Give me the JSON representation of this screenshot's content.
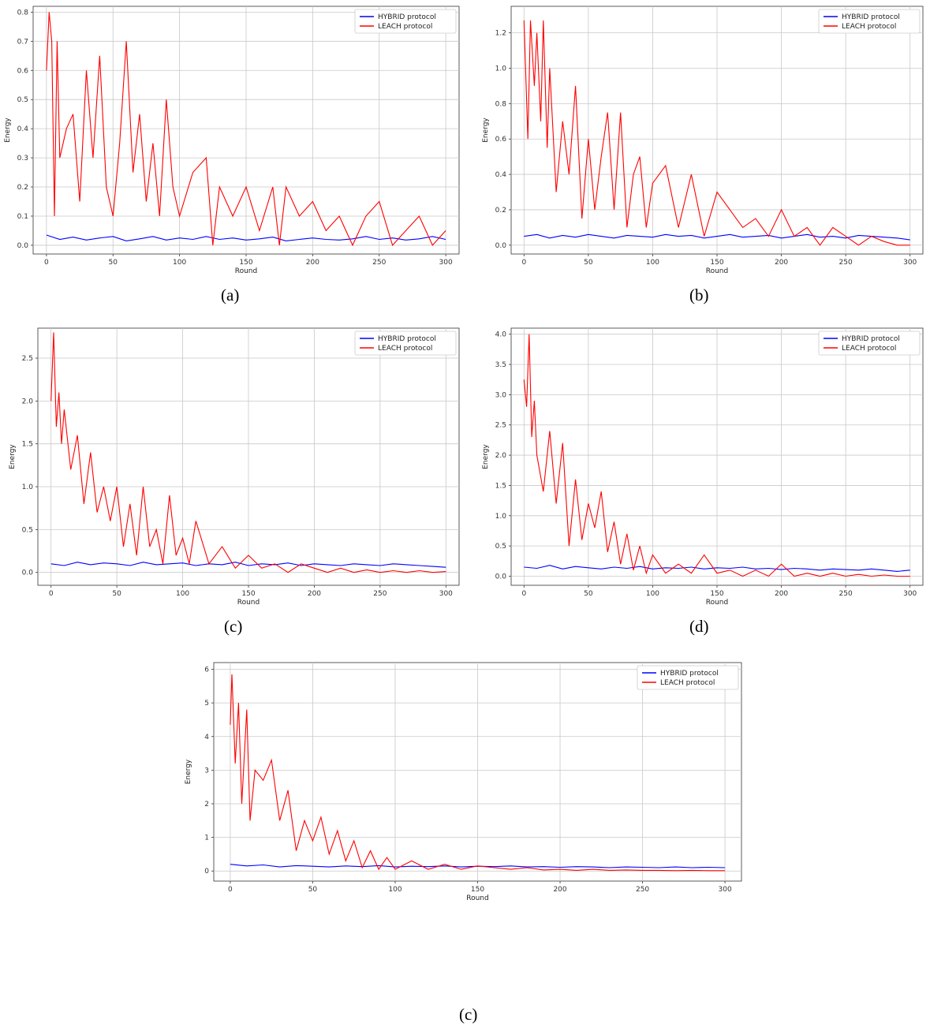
{
  "figure": {
    "captions": [
      "(a)",
      "(b)",
      "(c)",
      "(d)",
      "(c)"
    ]
  },
  "chart_data": [
    {
      "type": "line",
      "panel": "a",
      "title": "",
      "xlabel": "Round",
      "ylabel": "Energy",
      "xlim": [
        -10,
        310
      ],
      "ylim": [
        -0.03,
        0.82
      ],
      "xticks": [
        0,
        50,
        100,
        150,
        200,
        250,
        300
      ],
      "yticks": [
        0.0,
        0.1,
        0.2,
        0.3,
        0.4,
        0.5,
        0.6,
        0.7,
        0.8
      ],
      "tick_labels_y": [
        "0.0",
        "0.1",
        "0.2",
        "0.3",
        "0.4",
        "0.5",
        "0.6",
        "0.7",
        "0.8"
      ],
      "grid": true,
      "legend": "top-right",
      "series": [
        {
          "name": "HYBRID protocol",
          "color": "#0000ff",
          "x": [
            0,
            10,
            20,
            30,
            40,
            50,
            60,
            70,
            80,
            90,
            100,
            110,
            120,
            130,
            140,
            150,
            160,
            170,
            180,
            190,
            200,
            210,
            220,
            230,
            240,
            250,
            260,
            270,
            280,
            290,
            300
          ],
          "values": [
            0.035,
            0.02,
            0.028,
            0.018,
            0.025,
            0.03,
            0.015,
            0.022,
            0.03,
            0.018,
            0.025,
            0.02,
            0.03,
            0.02,
            0.025,
            0.018,
            0.022,
            0.028,
            0.015,
            0.02,
            0.025,
            0.02,
            0.018,
            0.022,
            0.03,
            0.02,
            0.025,
            0.018,
            0.022,
            0.03,
            0.02
          ]
        },
        {
          "name": "LEACH protocol",
          "color": "#ff0000",
          "x": [
            0,
            2,
            4,
            6,
            8,
            10,
            15,
            20,
            25,
            30,
            35,
            40,
            45,
            50,
            55,
            60,
            65,
            70,
            75,
            80,
            85,
            90,
            95,
            100,
            110,
            120,
            125,
            130,
            140,
            150,
            160,
            170,
            175,
            180,
            190,
            200,
            210,
            220,
            230,
            240,
            250,
            260,
            270,
            280,
            290,
            300
          ],
          "values": [
            0.6,
            0.8,
            0.7,
            0.1,
            0.7,
            0.3,
            0.4,
            0.45,
            0.15,
            0.6,
            0.3,
            0.65,
            0.2,
            0.1,
            0.35,
            0.7,
            0.25,
            0.45,
            0.15,
            0.35,
            0.1,
            0.5,
            0.2,
            0.1,
            0.25,
            0.3,
            0.0,
            0.2,
            0.1,
            0.2,
            0.05,
            0.2,
            0.0,
            0.2,
            0.1,
            0.15,
            0.05,
            0.1,
            0.0,
            0.1,
            0.15,
            0.0,
            0.05,
            0.1,
            0.0,
            0.05
          ]
        }
      ]
    },
    {
      "type": "line",
      "panel": "b",
      "title": "",
      "xlabel": "Round",
      "ylabel": "Energy",
      "xlim": [
        -10,
        310
      ],
      "ylim": [
        -0.05,
        1.35
      ],
      "xticks": [
        0,
        50,
        100,
        150,
        200,
        250,
        300
      ],
      "yticks": [
        0.0,
        0.2,
        0.4,
        0.6,
        0.8,
        1.0,
        1.2
      ],
      "tick_labels_y": [
        "0.0",
        "0.2",
        "0.4",
        "0.6",
        "0.8",
        "1.0",
        "1.2"
      ],
      "grid": true,
      "legend": "top-right",
      "series": [
        {
          "name": "HYBRID protocol",
          "color": "#0000ff",
          "x": [
            0,
            10,
            20,
            30,
            40,
            50,
            60,
            70,
            80,
            90,
            100,
            110,
            120,
            130,
            140,
            150,
            160,
            170,
            180,
            190,
            200,
            210,
            220,
            230,
            240,
            250,
            260,
            270,
            280,
            290,
            300
          ],
          "values": [
            0.05,
            0.06,
            0.04,
            0.055,
            0.045,
            0.06,
            0.05,
            0.04,
            0.055,
            0.05,
            0.045,
            0.06,
            0.05,
            0.055,
            0.04,
            0.05,
            0.06,
            0.045,
            0.05,
            0.055,
            0.04,
            0.05,
            0.06,
            0.045,
            0.05,
            0.04,
            0.055,
            0.05,
            0.045,
            0.04,
            0.03
          ]
        },
        {
          "name": "LEACH protocol",
          "color": "#ff0000",
          "x": [
            0,
            3,
            5,
            8,
            10,
            13,
            15,
            18,
            20,
            25,
            30,
            35,
            40,
            45,
            50,
            55,
            60,
            65,
            70,
            75,
            80,
            85,
            90,
            95,
            100,
            110,
            120,
            130,
            140,
            150,
            160,
            170,
            180,
            190,
            200,
            210,
            220,
            230,
            240,
            250,
            260,
            270,
            280,
            290,
            300
          ],
          "values": [
            1.27,
            0.6,
            1.27,
            0.9,
            1.2,
            0.7,
            1.27,
            0.55,
            1.0,
            0.3,
            0.7,
            0.4,
            0.9,
            0.15,
            0.6,
            0.2,
            0.5,
            0.75,
            0.2,
            0.75,
            0.1,
            0.4,
            0.5,
            0.1,
            0.35,
            0.45,
            0.1,
            0.4,
            0.05,
            0.3,
            0.2,
            0.1,
            0.15,
            0.05,
            0.2,
            0.05,
            0.1,
            0.0,
            0.1,
            0.05,
            0.0,
            0.05,
            0.02,
            0.0,
            0.0
          ]
        }
      ]
    },
    {
      "type": "line",
      "panel": "c",
      "title": "",
      "xlabel": "Round",
      "ylabel": "Energy",
      "xlim": [
        -10,
        310
      ],
      "ylim": [
        -0.15,
        2.85
      ],
      "xticks": [
        0,
        50,
        100,
        150,
        200,
        250,
        300
      ],
      "yticks": [
        0.0,
        0.5,
        1.0,
        1.5,
        2.0,
        2.5
      ],
      "tick_labels_y": [
        "0.0",
        "0.5",
        "1.0",
        "1.5",
        "2.0",
        "2.5"
      ],
      "grid": true,
      "legend": "top-right",
      "series": [
        {
          "name": "HYBRID protocol",
          "color": "#0000ff",
          "x": [
            0,
            10,
            20,
            30,
            40,
            50,
            60,
            70,
            80,
            90,
            100,
            110,
            120,
            130,
            140,
            150,
            160,
            170,
            180,
            190,
            200,
            210,
            220,
            230,
            240,
            250,
            260,
            270,
            280,
            290,
            300
          ],
          "values": [
            0.1,
            0.08,
            0.12,
            0.09,
            0.11,
            0.1,
            0.08,
            0.12,
            0.09,
            0.1,
            0.11,
            0.08,
            0.1,
            0.09,
            0.12,
            0.08,
            0.1,
            0.09,
            0.11,
            0.08,
            0.1,
            0.09,
            0.08,
            0.1,
            0.09,
            0.08,
            0.1,
            0.09,
            0.08,
            0.07,
            0.06
          ]
        },
        {
          "name": "LEACH protocol",
          "color": "#ff0000",
          "x": [
            0,
            2,
            4,
            6,
            8,
            10,
            15,
            20,
            25,
            30,
            35,
            40,
            45,
            50,
            55,
            60,
            65,
            70,
            75,
            80,
            85,
            90,
            95,
            100,
            105,
            110,
            120,
            130,
            140,
            150,
            160,
            170,
            180,
            190,
            200,
            210,
            220,
            230,
            240,
            250,
            260,
            270,
            280,
            290,
            300
          ],
          "values": [
            2.0,
            2.8,
            1.7,
            2.1,
            1.5,
            1.9,
            1.2,
            1.6,
            0.8,
            1.4,
            0.7,
            1.0,
            0.6,
            1.0,
            0.3,
            0.8,
            0.2,
            1.0,
            0.3,
            0.5,
            0.1,
            0.9,
            0.2,
            0.4,
            0.1,
            0.6,
            0.1,
            0.3,
            0.05,
            0.2,
            0.05,
            0.1,
            0.0,
            0.1,
            0.05,
            0.0,
            0.05,
            0.0,
            0.03,
            0.0,
            0.02,
            0.0,
            0.02,
            0.0,
            0.01
          ]
        }
      ]
    },
    {
      "type": "line",
      "panel": "d",
      "title": "",
      "xlabel": "Round",
      "ylabel": "Energy",
      "xlim": [
        -10,
        310
      ],
      "ylim": [
        -0.15,
        4.1
      ],
      "xticks": [
        0,
        50,
        100,
        150,
        200,
        250,
        300
      ],
      "yticks": [
        0.0,
        0.5,
        1.0,
        1.5,
        2.0,
        2.5,
        3.0,
        3.5,
        4.0
      ],
      "tick_labels_y": [
        "0.0",
        "0.5",
        "1.0",
        "1.5",
        "2.0",
        "2.5",
        "3.0",
        "3.5",
        "4.0"
      ],
      "grid": true,
      "legend": "top-right",
      "series": [
        {
          "name": "HYBRID protocol",
          "color": "#0000ff",
          "x": [
            0,
            10,
            20,
            30,
            40,
            50,
            60,
            70,
            80,
            90,
            100,
            110,
            120,
            130,
            140,
            150,
            160,
            170,
            180,
            190,
            200,
            210,
            220,
            230,
            240,
            250,
            260,
            270,
            280,
            290,
            300
          ],
          "values": [
            0.15,
            0.13,
            0.18,
            0.12,
            0.16,
            0.14,
            0.12,
            0.15,
            0.13,
            0.16,
            0.12,
            0.14,
            0.13,
            0.15,
            0.12,
            0.14,
            0.13,
            0.15,
            0.12,
            0.13,
            0.11,
            0.13,
            0.12,
            0.1,
            0.12,
            0.11,
            0.1,
            0.12,
            0.1,
            0.08,
            0.1
          ]
        },
        {
          "name": "LEACH protocol",
          "color": "#ff0000",
          "x": [
            0,
            2,
            4,
            6,
            8,
            10,
            15,
            20,
            25,
            30,
            35,
            40,
            45,
            50,
            55,
            60,
            65,
            70,
            75,
            80,
            85,
            90,
            95,
            100,
            110,
            120,
            130,
            140,
            150,
            160,
            170,
            180,
            190,
            200,
            210,
            220,
            230,
            240,
            250,
            260,
            270,
            280,
            290,
            300
          ],
          "values": [
            3.25,
            2.8,
            4.0,
            2.3,
            2.9,
            2.0,
            1.4,
            2.4,
            1.2,
            2.2,
            0.5,
            1.6,
            0.6,
            1.2,
            0.8,
            1.4,
            0.4,
            0.9,
            0.2,
            0.7,
            0.1,
            0.5,
            0.05,
            0.35,
            0.05,
            0.2,
            0.05,
            0.35,
            0.05,
            0.1,
            0.0,
            0.1,
            0.0,
            0.2,
            0.0,
            0.05,
            0.0,
            0.05,
            0.0,
            0.03,
            0.0,
            0.02,
            0.0,
            0.0
          ]
        }
      ]
    },
    {
      "type": "line",
      "panel": "e",
      "title": "",
      "xlabel": "Round",
      "ylabel": "Energy",
      "xlim": [
        -10,
        310
      ],
      "ylim": [
        -0.3,
        6.2
      ],
      "xticks": [
        0,
        50,
        100,
        150,
        200,
        250,
        300
      ],
      "yticks": [
        0,
        1,
        2,
        3,
        4,
        5,
        6
      ],
      "tick_labels_y": [
        "0",
        "1",
        "2",
        "3",
        "4",
        "5",
        "6"
      ],
      "grid": true,
      "legend": "top-right",
      "series": [
        {
          "name": "HYBRID protocol",
          "color": "#0000ff",
          "x": [
            0,
            10,
            20,
            30,
            40,
            50,
            60,
            70,
            80,
            90,
            100,
            110,
            120,
            130,
            140,
            150,
            160,
            170,
            180,
            190,
            200,
            210,
            220,
            230,
            240,
            250,
            260,
            270,
            280,
            290,
            300
          ],
          "values": [
            0.2,
            0.15,
            0.18,
            0.12,
            0.16,
            0.14,
            0.12,
            0.15,
            0.13,
            0.16,
            0.12,
            0.14,
            0.13,
            0.15,
            0.12,
            0.14,
            0.13,
            0.15,
            0.12,
            0.13,
            0.11,
            0.13,
            0.12,
            0.1,
            0.12,
            0.11,
            0.1,
            0.12,
            0.1,
            0.11,
            0.1
          ]
        },
        {
          "name": "LEACH protocol",
          "color": "#ff0000",
          "x": [
            0,
            1,
            3,
            5,
            7,
            10,
            12,
            15,
            20,
            25,
            30,
            35,
            40,
            45,
            50,
            55,
            60,
            65,
            70,
            75,
            80,
            85,
            90,
            95,
            100,
            110,
            120,
            130,
            140,
            150,
            160,
            170,
            180,
            190,
            200,
            210,
            220,
            230,
            240,
            250,
            260,
            270,
            280,
            290,
            300
          ],
          "values": [
            4.35,
            5.85,
            3.2,
            5.0,
            2.0,
            4.8,
            1.5,
            3.0,
            2.7,
            3.3,
            1.5,
            2.4,
            0.6,
            1.5,
            0.9,
            1.6,
            0.5,
            1.2,
            0.3,
            0.9,
            0.1,
            0.6,
            0.05,
            0.4,
            0.05,
            0.3,
            0.05,
            0.2,
            0.05,
            0.15,
            0.1,
            0.05,
            0.1,
            0.03,
            0.05,
            0.02,
            0.05,
            0.02,
            0.03,
            0.02,
            0.02,
            0.01,
            0.02,
            0.01,
            0.01
          ]
        }
      ]
    }
  ]
}
